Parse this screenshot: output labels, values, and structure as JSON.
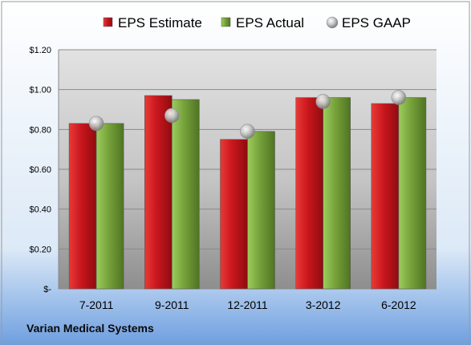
{
  "chart_data": {
    "type": "bar",
    "categories": [
      "7-2011",
      "9-2011",
      "12-2011",
      "3-2012",
      "6-2012"
    ],
    "series": [
      {
        "name": "EPS Estimate",
        "values": [
          0.83,
          0.97,
          0.75,
          0.96,
          0.93
        ],
        "color": "#c8161d",
        "kind": "bar"
      },
      {
        "name": "EPS Actual",
        "values": [
          0.83,
          0.95,
          0.79,
          0.96,
          0.96
        ],
        "color": "#76a13a",
        "kind": "bar"
      },
      {
        "name": "EPS GAAP",
        "values": [
          0.83,
          0.87,
          0.79,
          0.94,
          0.96
        ],
        "color": "#b9b9b9",
        "kind": "marker"
      }
    ],
    "yticks": [
      "$-",
      "$0.20",
      "$0.40",
      "$0.60",
      "$0.80",
      "$1.00",
      "$1.20"
    ],
    "ylim": [
      0,
      1.2
    ],
    "grid": true,
    "legend": "top"
  },
  "company": "Varian Medical Systems"
}
